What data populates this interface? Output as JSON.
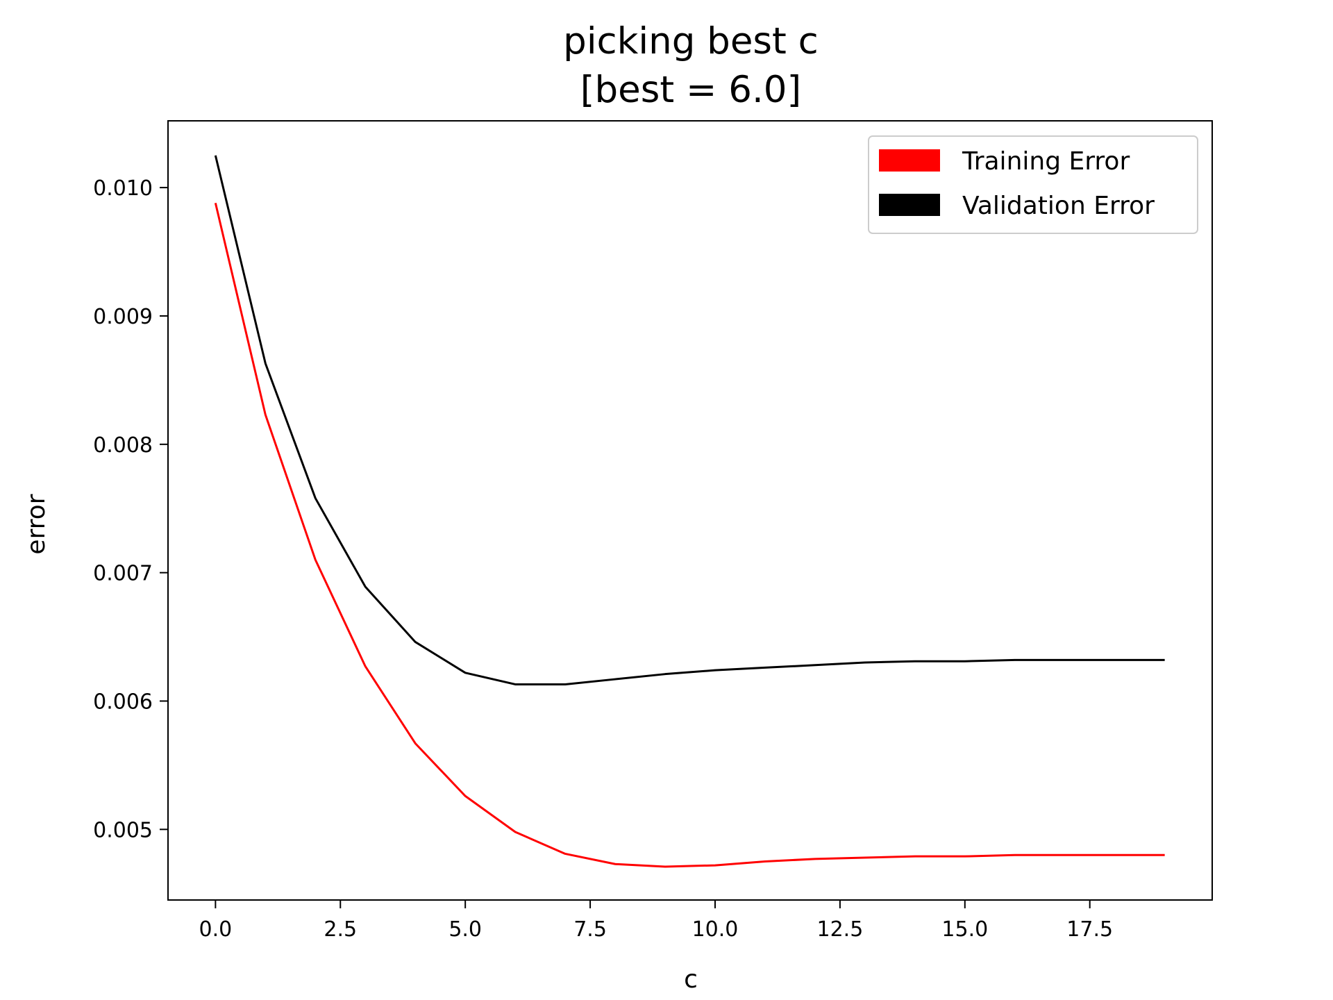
{
  "chart_data": {
    "type": "line",
    "title": "picking best c",
    "subtitle": "[best = 6.0]",
    "xlabel": "c",
    "ylabel": "error",
    "xlim": [
      -0.95,
      19.95
    ],
    "ylim": [
      0.00445,
      0.01052
    ],
    "xticks": [
      0,
      2.5,
      5,
      7.5,
      10,
      12.5,
      15,
      17.5
    ],
    "xtick_labels": [
      "0.0",
      "2.5",
      "5.0",
      "7.5",
      "10.0",
      "12.5",
      "15.0",
      "17.5"
    ],
    "yticks": [
      0.005,
      0.006,
      0.007,
      0.008,
      0.009,
      0.01
    ],
    "ytick_labels": [
      "0.005",
      "0.006",
      "0.007",
      "0.008",
      "0.009",
      "0.010"
    ],
    "grid": false,
    "legend_position": "top-right",
    "x": [
      0,
      1,
      2,
      3,
      4,
      5,
      6,
      7,
      8,
      9,
      10,
      11,
      12,
      13,
      14,
      15,
      16,
      17,
      18,
      19
    ],
    "series": [
      {
        "name": "Training Error",
        "color": "#ff0000",
        "values": [
          0.00988,
          0.00823,
          0.0071,
          0.00627,
          0.00567,
          0.00526,
          0.00498,
          0.00481,
          0.00473,
          0.00471,
          0.00472,
          0.00475,
          0.00477,
          0.00478,
          0.00479,
          0.00479,
          0.0048,
          0.0048,
          0.0048,
          0.0048
        ]
      },
      {
        "name": "Validation Error",
        "color": "#000000",
        "values": [
          0.01025,
          0.00863,
          0.00758,
          0.00689,
          0.00646,
          0.00622,
          0.00613,
          0.00613,
          0.00617,
          0.00621,
          0.00624,
          0.00626,
          0.00628,
          0.0063,
          0.00631,
          0.00631,
          0.00632,
          0.00632,
          0.00632,
          0.00632
        ]
      }
    ]
  }
}
